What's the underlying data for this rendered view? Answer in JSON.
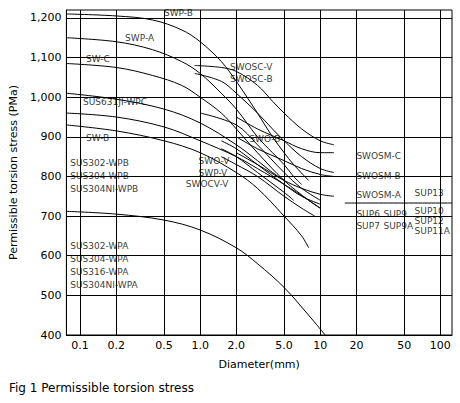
{
  "chart_data": {
    "type": "line",
    "title": "Fig 1 Permissible torsion stress",
    "x_label": "Diameter(mm)",
    "y_label": "Permissible torsion stress (PMa)",
    "log": "x",
    "grid": true,
    "color": "#000000",
    "xlim": [
      0.077,
      125
    ],
    "xticks": [
      0.1,
      0.2,
      0.5,
      {
        "value": 1,
        "label": "1.0"
      },
      {
        "value": 2,
        "label": "2.0"
      },
      {
        "value": 5,
        "label": "5.0"
      },
      10,
      20,
      50,
      100
    ],
    "ylim": [
      400,
      1220
    ],
    "yticks": [
      400,
      500,
      600,
      700,
      800,
      900,
      {
        "value": 1000,
        "label": "1,000"
      },
      {
        "value": 1100,
        "label": "1,100"
      },
      {
        "value": 1200,
        "label": "1,200"
      }
    ],
    "series": [
      {
        "values": [
          [
            0.077,
            1210
          ],
          [
            0.2,
            1205
          ],
          [
            0.4,
            1195
          ],
          [
            0.7,
            1170
          ],
          [
            1,
            1140
          ],
          [
            1.5,
            1090
          ],
          [
            2,
            1040
          ],
          [
            3,
            960
          ],
          [
            4,
            900
          ],
          [
            5,
            860
          ],
          [
            6,
            830
          ],
          [
            8,
            790
          ]
        ]
      },
      {
        "values": [
          [
            0.077,
            1150
          ],
          [
            0.2,
            1140
          ],
          [
            0.4,
            1120
          ],
          [
            0.7,
            1090
          ],
          [
            1,
            1060
          ],
          [
            1.5,
            1010
          ],
          [
            2,
            970
          ],
          [
            3,
            900
          ],
          [
            4,
            860
          ],
          [
            5,
            830
          ],
          [
            6,
            800
          ],
          [
            7,
            780
          ]
        ]
      },
      {
        "values": [
          [
            0.077,
            1085
          ],
          [
            0.2,
            1075
          ],
          [
            0.4,
            1055
          ],
          [
            0.7,
            1030
          ],
          [
            1,
            1000
          ],
          [
            1.5,
            960
          ],
          [
            2,
            920
          ],
          [
            3,
            860
          ],
          [
            5,
            790
          ],
          [
            8,
            740
          ],
          [
            10,
            720
          ]
        ]
      },
      {
        "values": [
          [
            0.077,
            1010
          ],
          [
            0.2,
            995
          ],
          [
            0.5,
            970
          ],
          [
            1,
            935
          ],
          [
            2,
            880
          ],
          [
            3,
            840
          ],
          [
            4,
            810
          ],
          [
            5,
            790
          ]
        ]
      },
      {
        "values": [
          [
            0.077,
            960
          ],
          [
            0.2,
            950
          ],
          [
            0.5,
            925
          ],
          [
            1,
            890
          ],
          [
            2,
            850
          ],
          [
            3,
            820
          ],
          [
            5,
            780
          ],
          [
            8,
            740
          ],
          [
            10,
            720
          ]
        ]
      },
      {
        "values": [
          [
            0.077,
            930
          ],
          [
            0.2,
            915
          ],
          [
            0.5,
            890
          ],
          [
            1,
            860
          ],
          [
            2,
            810
          ],
          [
            3,
            770
          ],
          [
            5,
            700
          ],
          [
            7,
            650
          ],
          [
            8,
            620
          ]
        ]
      },
      {
        "values": [
          [
            0.077,
            712
          ],
          [
            0.2,
            705
          ],
          [
            0.5,
            690
          ],
          [
            1,
            665
          ],
          [
            2,
            620
          ],
          [
            3,
            580
          ],
          [
            5,
            520
          ],
          [
            8,
            450
          ],
          [
            11,
            400
          ]
        ]
      },
      {
        "values": [
          [
            0.9,
            1080
          ],
          [
            1.5,
            1075
          ],
          [
            2,
            1065
          ],
          [
            3,
            1030
          ],
          [
            4,
            990
          ],
          [
            5,
            960
          ],
          [
            7,
            920
          ],
          [
            10,
            890
          ],
          [
            13,
            880
          ]
        ]
      },
      {
        "values": [
          [
            0.9,
            1060
          ],
          [
            1.5,
            1040
          ],
          [
            2,
            1010
          ],
          [
            3,
            960
          ],
          [
            4,
            920
          ],
          [
            5,
            890
          ],
          [
            7,
            850
          ],
          [
            10,
            820
          ],
          [
            13,
            810
          ]
        ]
      },
      {
        "values": [
          [
            2,
            950
          ],
          [
            3,
            920
          ],
          [
            5,
            890
          ],
          [
            7,
            870
          ],
          [
            10,
            860
          ],
          [
            13,
            860
          ]
        ]
      },
      {
        "values": [
          [
            2,
            900
          ],
          [
            3,
            870
          ],
          [
            5,
            840
          ],
          [
            7,
            820
          ],
          [
            10,
            805
          ],
          [
            13,
            800
          ]
        ]
      },
      {
        "values": [
          [
            2,
            860
          ],
          [
            3,
            830
          ],
          [
            5,
            790
          ],
          [
            7,
            770
          ],
          [
            10,
            755
          ],
          [
            13,
            750
          ]
        ]
      },
      {
        "values": [
          [
            1,
            960
          ],
          [
            2,
            930
          ],
          [
            3,
            880
          ],
          [
            5,
            810
          ],
          [
            7,
            770
          ],
          [
            10,
            740
          ]
        ]
      },
      {
        "values": [
          [
            1.5,
            890
          ],
          [
            2,
            870
          ],
          [
            3,
            830
          ],
          [
            5,
            780
          ],
          [
            7,
            750
          ],
          [
            10,
            730
          ]
        ]
      },
      {
        "values": [
          [
            1.5,
            870
          ],
          [
            2,
            850
          ],
          [
            3,
            810
          ],
          [
            5,
            760
          ],
          [
            6,
            740
          ]
        ]
      },
      {
        "values": [
          [
            1.5,
            850
          ],
          [
            2,
            830
          ],
          [
            3,
            800
          ],
          [
            5,
            750
          ],
          [
            7,
            720
          ],
          [
            9,
            700
          ]
        ]
      },
      {
        "values": [
          [
            16,
            733
          ],
          [
            125,
            733
          ]
        ]
      }
    ],
    "annotations": [
      {
        "text": "SWP-B",
        "x": 0.5,
        "y": 1213
      },
      {
        "text": "SWP-A",
        "x": 0.237,
        "y": 1150
      },
      {
        "text": "SW-C",
        "x": 0.112,
        "y": 1096
      },
      {
        "text": "SUS631JI-WPC",
        "x": 0.106,
        "y": 988
      },
      {
        "text": "SW-B",
        "x": 0.112,
        "y": 897
      },
      {
        "text": "SUS302-WPB",
        "x": 0.083,
        "y": 834
      },
      {
        "text": "SUS304-WPB",
        "x": 0.083,
        "y": 801
      },
      {
        "text": "SUS304NI-WPB",
        "x": 0.083,
        "y": 768
      },
      {
        "text": "SUS302-WPA",
        "x": 0.083,
        "y": 624
      },
      {
        "text": "SUS304-WPA",
        "x": 0.083,
        "y": 591
      },
      {
        "text": "SUS316-WPA",
        "x": 0.083,
        "y": 559
      },
      {
        "text": "SUS304NI-WPA",
        "x": 0.083,
        "y": 526
      },
      {
        "text": "SWOSC-V",
        "x": 1.77,
        "y": 1076
      },
      {
        "text": "SWOSC-B",
        "x": 1.77,
        "y": 1046
      },
      {
        "text": "SWO-B",
        "x": 2.57,
        "y": 895
      },
      {
        "text": "SWO-V",
        "x": 0.97,
        "y": 839
      },
      {
        "text": "SWP-V",
        "x": 0.97,
        "y": 809
      },
      {
        "text": "SWOCV-V",
        "x": 0.76,
        "y": 781
      },
      {
        "text": "SWOSM-C",
        "x": 20,
        "y": 852
      },
      {
        "text": "SWOSM-B",
        "x": 20,
        "y": 800
      },
      {
        "text": "SWOSM-A",
        "x": 20,
        "y": 752
      },
      {
        "text": "SUP6",
        "x": 20,
        "y": 705
      },
      {
        "text": "SUP7",
        "x": 20,
        "y": 675
      },
      {
        "text": "SUP9",
        "x": 33.6,
        "y": 705
      },
      {
        "text": "SUP9A",
        "x": 33.6,
        "y": 675
      },
      {
        "text": "SUP13",
        "x": 61,
        "y": 758
      },
      {
        "text": "SUP10",
        "x": 61,
        "y": 712
      },
      {
        "text": "SUP12",
        "x": 61,
        "y": 687
      },
      {
        "text": "SUP11A",
        "x": 61,
        "y": 662
      }
    ]
  }
}
